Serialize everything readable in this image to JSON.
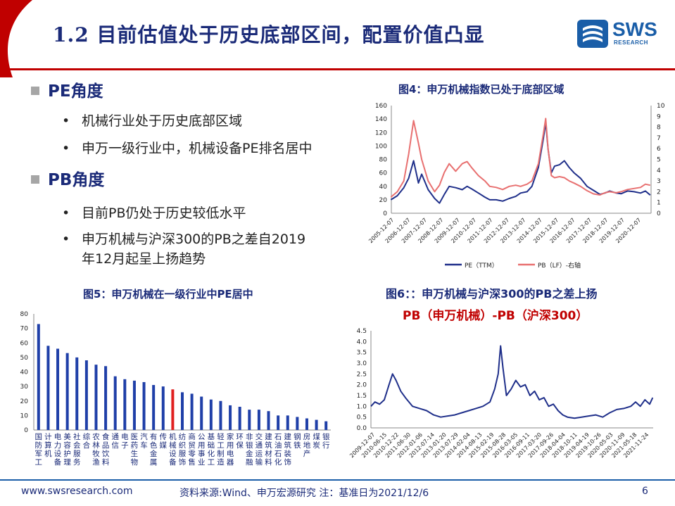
{
  "header": {
    "title": "1.2 目前估值处于历史底部区间，配置价值凸显",
    "logo_text": "SWS",
    "logo_sub": "RESEARCH"
  },
  "sections": {
    "pe": {
      "heading": "PE角度",
      "bullets": [
        "机械行业处于历史底部区域",
        "申万一级行业中，机械设备PE排名居中"
      ]
    },
    "pb": {
      "heading": "PB角度",
      "bullets": [
        "目前PB仍处于历史较低水平",
        "申万机械与沪深300的PB之差自2019",
        "年12月起呈上扬趋势"
      ]
    }
  },
  "figures": {
    "fig4_title": "图4：申万机械指数已处于底部区域",
    "fig5_title": "图5：申万机械在一级行业中PE居中",
    "fig6_title": "图6：：申万机械与沪深300的PB之差上扬",
    "fig6_subtitle": "PB（申万机械）-PB（沪深300）"
  },
  "footer": {
    "website": "www.swsresearch.com",
    "source": "资料来源:Wind、申万宏源研究 注：基准日为2021/12/6",
    "page": "6"
  },
  "colors": {
    "navy": "#1a2a78",
    "red": "#c00000",
    "bar": "#1f3fa8",
    "pb_line": "#e87070"
  },
  "chart_data": [
    {
      "type": "line",
      "x_ticks": [
        "2005-12-07",
        "2006-12-07",
        "2007-12-07",
        "2008-12-07",
        "2009-12-07",
        "2010-12-07",
        "2011-12-07",
        "2012-12-07",
        "2013-12-07",
        "2014-12-07",
        "2015-12-07",
        "2016-12-07",
        "2017-12-07",
        "2018-12-07",
        "2019-12-07",
        "2020-12-07"
      ],
      "y_left_ticks": [
        "0",
        "20",
        "40",
        "60",
        "80",
        "100",
        "120",
        "140",
        "160"
      ],
      "y_right_ticks": [
        "0",
        "1",
        "2",
        "3",
        "4",
        "5",
        "6",
        "7",
        "8",
        "9",
        "10"
      ],
      "ylim_left": [
        0,
        160
      ],
      "ylim_right": [
        0,
        10
      ],
      "series": [
        {
          "name": "PE（TTM）",
          "axis": "left",
          "color": "#1f2f8a",
          "x": [
            2005.9,
            2006.3,
            2006.7,
            2007.0,
            2007.3,
            2007.6,
            2007.8,
            2008.2,
            2008.6,
            2008.9,
            2009.2,
            2009.5,
            2009.9,
            2010.3,
            2010.6,
            2010.9,
            2011.3,
            2011.7,
            2012.0,
            2012.4,
            2012.8,
            2013.2,
            2013.6,
            2013.9,
            2014.3,
            2014.6,
            2015.0,
            2015.3,
            2015.45,
            2015.6,
            2015.8,
            2016.0,
            2016.3,
            2016.6,
            2016.9,
            2017.2,
            2017.6,
            2018.0,
            2018.4,
            2018.8,
            2019.1,
            2019.4,
            2019.8,
            2020.1,
            2020.5,
            2020.9,
            2021.3,
            2021.6,
            2021.9
          ],
          "y": [
            20,
            26,
            38,
            52,
            78,
            45,
            58,
            35,
            22,
            15,
            28,
            40,
            38,
            35,
            40,
            36,
            30,
            24,
            20,
            20,
            18,
            22,
            25,
            30,
            32,
            40,
            68,
            110,
            135,
            95,
            60,
            70,
            72,
            78,
            68,
            60,
            52,
            40,
            34,
            28,
            30,
            33,
            30,
            29,
            33,
            32,
            30,
            33,
            27
          ]
        },
        {
          "name": "PB（LF）-右轴",
          "axis": "right",
          "color": "#e87070",
          "x": [
            2005.9,
            2006.3,
            2006.7,
            2007.0,
            2007.3,
            2007.6,
            2007.8,
            2008.2,
            2008.6,
            2008.9,
            2009.2,
            2009.5,
            2009.9,
            2010.3,
            2010.6,
            2010.9,
            2011.3,
            2011.7,
            2012.0,
            2012.4,
            2012.8,
            2013.2,
            2013.6,
            2013.9,
            2014.3,
            2014.6,
            2015.0,
            2015.3,
            2015.45,
            2015.6,
            2015.8,
            2016.0,
            2016.3,
            2016.6,
            2016.9,
            2017.2,
            2017.6,
            2018.0,
            2018.4,
            2018.8,
            2019.1,
            2019.4,
            2019.8,
            2020.1,
            2020.5,
            2020.9,
            2021.3,
            2021.6,
            2021.9
          ],
          "y": [
            1.5,
            2.0,
            3.0,
            5.5,
            8.6,
            6.5,
            5.0,
            3.0,
            2.0,
            2.6,
            3.8,
            4.6,
            3.9,
            4.6,
            4.8,
            4.2,
            3.5,
            3.0,
            2.5,
            2.4,
            2.2,
            2.5,
            2.6,
            2.5,
            2.7,
            3.0,
            4.6,
            7.3,
            8.8,
            6.0,
            3.5,
            3.3,
            3.4,
            3.3,
            3.0,
            2.8,
            2.5,
            2.1,
            1.8,
            1.7,
            1.9,
            2.0,
            1.9,
            2.0,
            2.2,
            2.3,
            2.4,
            2.7,
            2.6
          ]
        }
      ]
    },
    {
      "type": "bar",
      "categories": [
        "国防军工",
        "计算机",
        "电力设备",
        "美容护理",
        "社会服务",
        "综合",
        "农林牧渔",
        "食品饮料",
        "通信",
        "电子",
        "医药生物",
        "汽车",
        "有色金属",
        "传媒",
        "机械设备",
        "纺织服饰",
        "商贸零售",
        "公用事业",
        "基础化工",
        "轻工制造",
        "家用电器",
        "环保",
        "非银金融",
        "交通运输",
        "建筑材料",
        "石油石化",
        "建筑装饰",
        "钢铁",
        "房地产",
        "煤炭",
        "银行"
      ],
      "values": [
        73,
        58,
        56,
        53,
        50,
        48,
        45,
        44,
        37,
        35,
        34,
        33,
        31,
        30,
        28,
        26,
        25,
        23,
        21,
        20,
        17,
        16,
        14,
        14,
        13,
        10,
        10,
        9,
        8,
        7,
        6
      ],
      "highlight_index": 14,
      "ylim": [
        0,
        80
      ],
      "y_ticks": [
        "0",
        "10",
        "20",
        "30",
        "40",
        "50",
        "60",
        "70",
        "80"
      ]
    },
    {
      "type": "line",
      "x_ticks": [
        "2009-12-07",
        "2010-06-15",
        "2010-12-22",
        "2011-06-30",
        "2012-01-06",
        "2012-07-14",
        "2013-01-20",
        "2013-07-29",
        "2014-02-04",
        "2014-08-13",
        "2015-02-19",
        "2015-08-28",
        "2016-03-05",
        "2016-09-11",
        "2017-03-20",
        "2017-09-26",
        "2018-04-04",
        "2018-10-11",
        "2019-04-19",
        "2019-10-26",
        "2020-05-03",
        "2020-11-09",
        "2021-05-18",
        "2021-11-24"
      ],
      "y_ticks": [
        "0.0",
        "0.5",
        "1.0",
        "1.5",
        "2.0",
        "2.5",
        "3.0",
        "3.5",
        "4.0",
        "4.5"
      ],
      "ylim": [
        0,
        4.5
      ],
      "series": [
        {
          "name": "PB（申万机械）-PB（沪深300）",
          "color": "#1f2f8a",
          "x": [
            2009.93,
            2010.1,
            2010.3,
            2010.5,
            2010.7,
            2010.85,
            2011.0,
            2011.2,
            2011.4,
            2011.7,
            2012.0,
            2012.3,
            2012.6,
            2012.9,
            2013.2,
            2013.5,
            2013.8,
            2014.1,
            2014.4,
            2014.7,
            2015.0,
            2015.2,
            2015.35,
            2015.45,
            2015.55,
            2015.7,
            2015.9,
            2016.1,
            2016.3,
            2016.5,
            2016.7,
            2016.9,
            2017.1,
            2017.3,
            2017.5,
            2017.7,
            2017.9,
            2018.1,
            2018.3,
            2018.6,
            2018.9,
            2019.2,
            2019.5,
            2019.8,
            2020.1,
            2020.4,
            2020.7,
            2021.0,
            2021.2,
            2021.4,
            2021.6,
            2021.8,
            2021.93
          ],
          "y": [
            1.0,
            1.2,
            1.1,
            1.3,
            2.0,
            2.5,
            2.2,
            1.7,
            1.4,
            1.0,
            0.9,
            0.8,
            0.6,
            0.5,
            0.55,
            0.6,
            0.7,
            0.8,
            0.9,
            1.0,
            1.2,
            1.8,
            2.5,
            3.8,
            2.8,
            1.5,
            1.8,
            2.2,
            1.9,
            2.0,
            1.5,
            1.7,
            1.3,
            1.4,
            1.0,
            1.1,
            0.8,
            0.6,
            0.5,
            0.45,
            0.5,
            0.55,
            0.6,
            0.5,
            0.7,
            0.85,
            0.9,
            1.0,
            1.2,
            1.0,
            1.3,
            1.1,
            1.4
          ]
        }
      ]
    }
  ]
}
